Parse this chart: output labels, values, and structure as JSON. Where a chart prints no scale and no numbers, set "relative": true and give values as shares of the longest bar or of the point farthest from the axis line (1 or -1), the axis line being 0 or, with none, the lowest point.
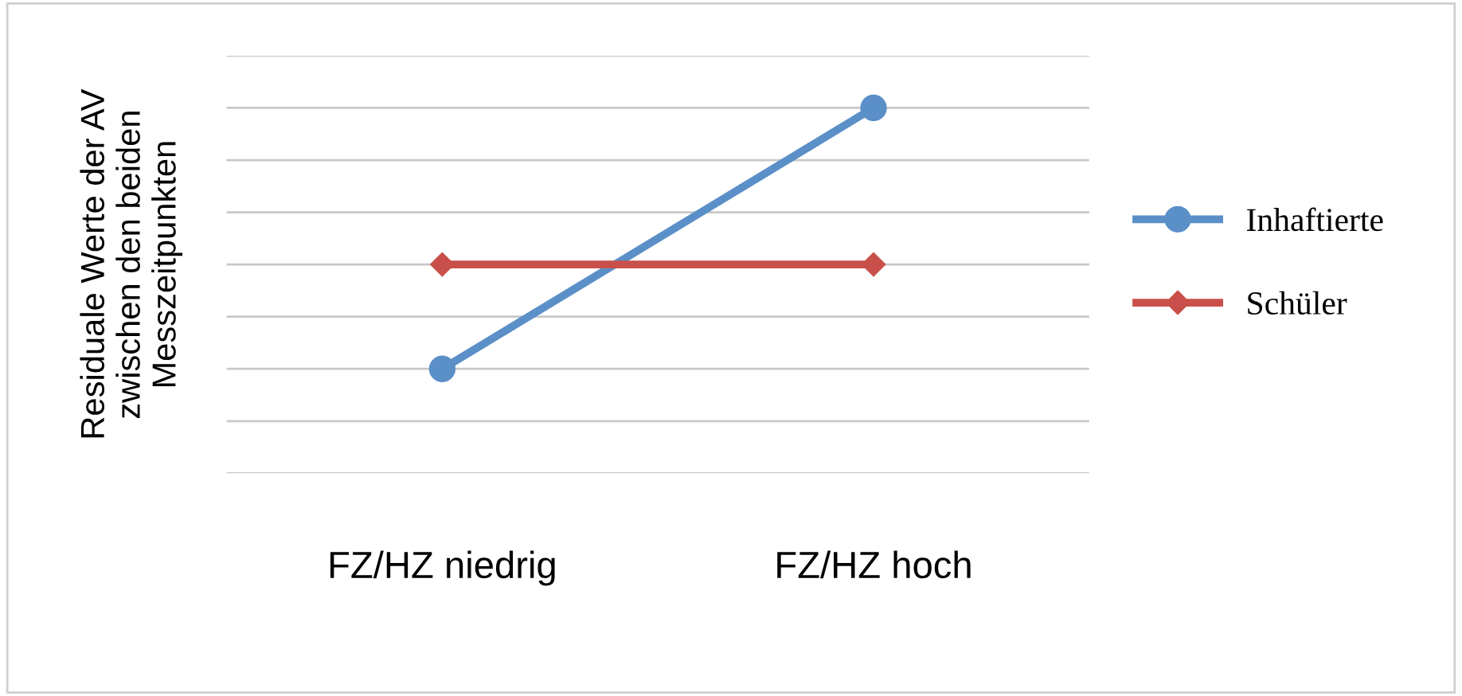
{
  "chart_data": {
    "type": "line",
    "relative": true,
    "ylabel": "Residuale Werte der AV\nzwischen den beiden\nMesszeitpunkten",
    "categories": [
      "FZ/HZ niedrig",
      "FZ/HZ hoch"
    ],
    "series": [
      {
        "name": "Inhaftierte",
        "color": "#5b8fc8",
        "values": [
          0,
          1
        ],
        "marker": "circle"
      },
      {
        "name": "Schüler",
        "color": "#c9504a",
        "values": [
          0.4,
          0.4
        ],
        "marker": "diamond"
      }
    ],
    "grid": "y",
    "legend": "right"
  }
}
